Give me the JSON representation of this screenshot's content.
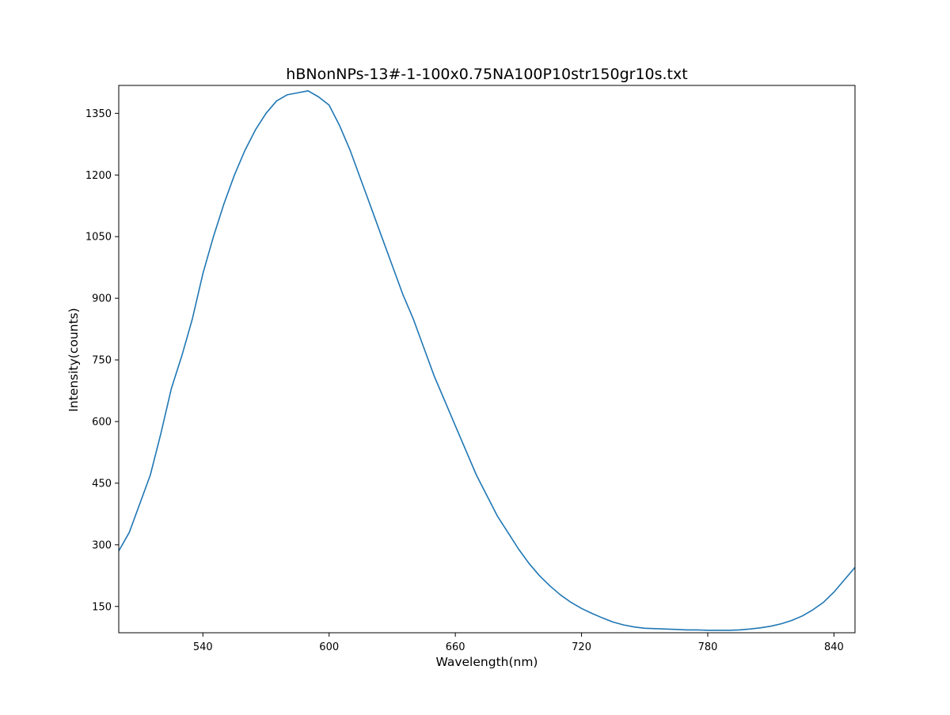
{
  "chart_data": {
    "type": "line",
    "title": "hBNonNPs-13#-1-100x0.75NA100P10str150gr10s.txt",
    "xlabel": "Wavelength(nm)",
    "ylabel": "Intensity(counts)",
    "xlim": [
      500,
      850
    ],
    "ylim": [
      86,
      1418
    ],
    "x_ticks": [
      540,
      600,
      660,
      720,
      780,
      840
    ],
    "y_ticks": [
      150,
      300,
      450,
      600,
      750,
      900,
      1050,
      1200,
      1350
    ],
    "grid": false,
    "legend": "none",
    "series": [
      {
        "color": "#1f77b4",
        "x": [
          500,
          505,
          510,
          515,
          520,
          525,
          530,
          535,
          540,
          545,
          550,
          555,
          560,
          565,
          570,
          575,
          580,
          585,
          590,
          595,
          600,
          605,
          610,
          615,
          620,
          625,
          630,
          635,
          640,
          645,
          650,
          655,
          660,
          665,
          670,
          675,
          680,
          685,
          690,
          695,
          700,
          705,
          710,
          715,
          720,
          725,
          730,
          735,
          740,
          745,
          750,
          755,
          760,
          765,
          770,
          775,
          780,
          785,
          790,
          795,
          800,
          805,
          810,
          815,
          820,
          825,
          830,
          835,
          840,
          845,
          850
        ],
        "y": [
          285,
          330,
          400,
          470,
          570,
          680,
          760,
          850,
          960,
          1050,
          1130,
          1200,
          1260,
          1310,
          1350,
          1380,
          1395,
          1400,
          1405,
          1390,
          1370,
          1320,
          1260,
          1190,
          1120,
          1050,
          980,
          910,
          850,
          780,
          710,
          650,
          590,
          530,
          470,
          420,
          370,
          330,
          290,
          255,
          225,
          200,
          178,
          160,
          145,
          133,
          122,
          112,
          105,
          100,
          97,
          96,
          95,
          94,
          93,
          93,
          92,
          92,
          92,
          93,
          95,
          98,
          102,
          108,
          116,
          127,
          142,
          160,
          185,
          215,
          245
        ]
      }
    ]
  }
}
